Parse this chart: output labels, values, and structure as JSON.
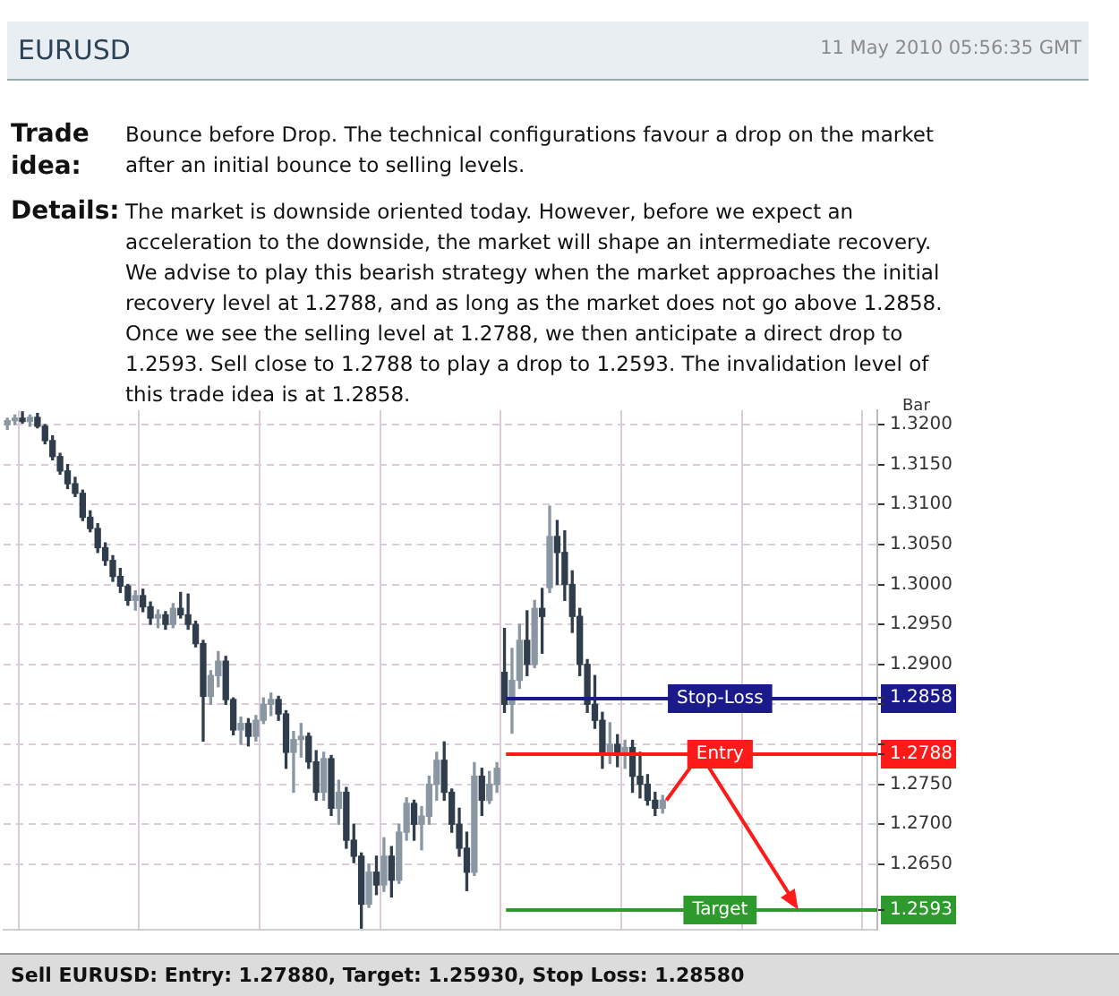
{
  "chart_data": {
    "type": "candlestick",
    "title": "EURUSD",
    "subtitle": "11 May 2010 05:56:35 GMT",
    "annotations": [
      "Trade idea:",
      "Bounce before Drop. The technical configurations favour a drop on the market after an initial bounce to selling levels.",
      "Details:",
      "The market is downside oriented today. However, before we expect an acceleration to the downside, the market will shape an intermediate recovery. We advise to play this bearish strategy when the market approaches the initial recovery level at 1.2788, and as long as the market does not go above 1.2858. Once we see the selling level at 1.2788, we then anticipate a direct drop to 1.2593. Sell close to 1.2788 to play a drop to 1.2593. The invalidation level of this trade idea is at 1.2858.",
      "Bar",
      "Sell EURUSD: Entry: 1.27880, Target: 1.25930, Stop Loss: 1.28580"
    ],
    "categories": [
      null,
      null,
      null,
      null,
      null,
      null,
      null,
      null,
      null,
      null,
      null,
      null,
      null,
      null,
      null,
      null,
      null,
      null,
      null,
      null,
      null,
      null,
      null,
      null,
      null,
      null,
      null,
      null,
      null,
      null,
      null,
      null,
      null,
      null,
      null,
      null,
      null,
      null,
      null,
      null,
      null,
      null,
      null,
      null,
      null,
      null,
      null,
      null,
      null,
      null,
      null,
      null,
      null,
      null,
      null,
      null,
      null,
      null,
      null,
      null,
      null,
      null,
      null,
      null,
      null,
      null,
      null,
      null,
      null,
      null,
      null,
      null,
      null,
      null,
      null,
      null,
      null,
      null,
      null,
      null,
      null,
      null,
      null,
      null,
      null,
      null,
      null,
      null,
      null,
      null,
      null,
      null,
      null,
      null,
      null,
      null,
      null,
      null,
      null,
      null,
      null,
      null,
      null,
      null,
      null,
      null,
      null,
      null,
      null,
      null,
      null,
      null,
      null,
      null,
      null,
      null
    ],
    "ohlc": [
      [
        1.32,
        1.3208,
        1.3194,
        1.3205
      ],
      [
        1.3205,
        1.3212,
        1.32,
        1.3208
      ],
      [
        1.3208,
        1.3216,
        1.3202,
        1.3204
      ],
      [
        1.3204,
        1.3212,
        1.3198,
        1.3209
      ],
      [
        1.3209,
        1.3214,
        1.3196,
        1.3198
      ],
      [
        1.3198,
        1.32,
        1.3176,
        1.318
      ],
      [
        1.318,
        1.3186,
        1.3156,
        1.316
      ],
      [
        1.316,
        1.3164,
        1.3138,
        1.3142
      ],
      [
        1.3142,
        1.315,
        1.312,
        1.3126
      ],
      [
        1.3126,
        1.3134,
        1.311,
        1.3114
      ],
      [
        1.3114,
        1.3118,
        1.308,
        1.3084
      ],
      [
        1.3084,
        1.3092,
        1.3066,
        1.307
      ],
      [
        1.307,
        1.3076,
        1.304,
        1.3046
      ],
      [
        1.3046,
        1.3052,
        1.3024,
        1.303
      ],
      [
        1.303,
        1.3036,
        1.3004,
        1.301
      ],
      [
        1.301,
        1.302,
        1.299,
        1.2998
      ],
      [
        1.2998,
        1.3,
        1.2974,
        1.298
      ],
      [
        1.298,
        1.2992,
        1.2968,
        1.2986
      ],
      [
        1.2986,
        1.2994,
        1.2966,
        1.2972
      ],
      [
        1.2972,
        1.2978,
        1.295,
        1.2958
      ],
      [
        1.2958,
        1.2968,
        1.2946,
        1.2962
      ],
      [
        1.2962,
        1.2966,
        1.2944,
        1.295
      ],
      [
        1.295,
        1.2976,
        1.2946,
        1.297
      ],
      [
        1.297,
        1.299,
        1.2958,
        1.2962
      ],
      [
        1.2962,
        1.2988,
        1.2944,
        1.295
      ],
      [
        1.295,
        1.2954,
        1.2922,
        1.2926
      ],
      [
        1.2926,
        1.293,
        1.2804,
        1.286
      ],
      [
        1.286,
        1.2892,
        1.285,
        1.2886
      ],
      [
        1.2886,
        1.2916,
        1.2872,
        1.2904
      ],
      [
        1.2904,
        1.291,
        1.285,
        1.2856
      ],
      [
        1.2856,
        1.2858,
        1.2812,
        1.2818
      ],
      [
        1.2818,
        1.2834,
        1.28,
        1.2826
      ],
      [
        1.2826,
        1.2832,
        1.2798,
        1.281
      ],
      [
        1.281,
        1.2836,
        1.2804,
        1.283
      ],
      [
        1.283,
        1.2858,
        1.2826,
        1.285
      ],
      [
        1.285,
        1.2864,
        1.2836,
        1.2856
      ],
      [
        1.2856,
        1.286,
        1.283,
        1.2838
      ],
      [
        1.2838,
        1.2842,
        1.277,
        1.279
      ],
      [
        1.279,
        1.2816,
        1.274,
        1.2806
      ],
      [
        1.2806,
        1.2826,
        1.2784,
        1.281
      ],
      [
        1.281,
        1.2814,
        1.277,
        1.2778
      ],
      [
        1.2778,
        1.2792,
        1.273,
        1.274
      ],
      [
        1.274,
        1.279,
        1.273,
        1.2782
      ],
      [
        1.2782,
        1.2786,
        1.2711,
        1.272
      ],
      [
        1.272,
        1.2755,
        1.27,
        1.274
      ],
      [
        1.274,
        1.2746,
        1.267,
        1.268
      ],
      [
        1.268,
        1.27,
        1.2652,
        1.266
      ],
      [
        1.266,
        1.2664,
        1.257,
        1.26
      ],
      [
        1.26,
        1.265,
        1.2596,
        1.264
      ],
      [
        1.264,
        1.266,
        1.2612,
        1.2624
      ],
      [
        1.2624,
        1.2683,
        1.2616,
        1.266
      ],
      [
        1.266,
        1.2672,
        1.2609,
        1.263
      ],
      [
        1.263,
        1.27,
        1.2626,
        1.269
      ],
      [
        1.269,
        1.2733,
        1.268,
        1.2726
      ],
      [
        1.2726,
        1.273,
        1.268,
        1.27
      ],
      [
        1.27,
        1.2722,
        1.2668,
        1.271
      ],
      [
        1.271,
        1.276,
        1.27,
        1.275
      ],
      [
        1.275,
        1.279,
        1.273,
        1.278
      ],
      [
        1.278,
        1.2803,
        1.273,
        1.274
      ],
      [
        1.274,
        1.2744,
        1.269,
        1.27
      ],
      [
        1.27,
        1.272,
        1.266,
        1.267
      ],
      [
        1.267,
        1.269,
        1.2617,
        1.264
      ],
      [
        1.264,
        1.2777,
        1.2636,
        1.276
      ],
      [
        1.276,
        1.277,
        1.2711,
        1.273
      ],
      [
        1.273,
        1.2766,
        1.2726,
        1.275
      ],
      [
        1.275,
        1.2777,
        1.274,
        1.277
      ],
      [
        1.289,
        1.2945,
        1.284,
        1.285
      ],
      [
        1.285,
        1.292,
        1.2814,
        1.288
      ],
      [
        1.288,
        1.295,
        1.287,
        1.293
      ],
      [
        1.293,
        1.2967,
        1.2886,
        1.29
      ],
      [
        1.29,
        1.298,
        1.2896,
        1.297
      ],
      [
        1.297,
        1.2995,
        1.2914,
        1.296
      ],
      [
        1.2996,
        1.3098,
        1.299,
        1.306
      ],
      [
        1.306,
        1.308,
        1.3,
        1.304
      ],
      [
        1.304,
        1.3067,
        1.298,
        1.3
      ],
      [
        1.3,
        1.3017,
        1.294,
        1.296
      ],
      [
        1.296,
        1.297,
        1.2886,
        1.29
      ],
      [
        1.29,
        1.2906,
        1.284,
        1.285
      ],
      [
        1.285,
        1.2886,
        1.282,
        1.283
      ],
      [
        1.283,
        1.284,
        1.277,
        1.279
      ],
      [
        1.279,
        1.2827,
        1.2776,
        1.28
      ],
      [
        1.28,
        1.2812,
        1.2772,
        1.279
      ],
      [
        1.279,
        1.2805,
        1.277,
        1.2796
      ],
      [
        1.2796,
        1.2805,
        1.274,
        1.276
      ],
      [
        1.276,
        1.279,
        1.2733,
        1.275
      ],
      [
        1.275,
        1.2762,
        1.2724,
        1.273
      ],
      [
        1.273,
        1.274,
        1.2711,
        1.272
      ],
      [
        1.272,
        1.2736,
        1.2714,
        1.273
      ],
      null,
      null,
      null,
      null,
      null,
      null,
      null,
      null,
      null,
      null,
      null,
      null,
      null,
      null,
      null,
      null,
      null,
      null,
      null,
      null,
      null,
      null,
      null,
      null,
      null,
      null,
      null,
      null
    ],
    "colors": [
      "#8a97a3",
      "#8a97a3",
      "#2f3d4c",
      "#8a97a3",
      "#2f3d4c",
      "#2f3d4c",
      "#2f3d4c",
      "#2f3d4c",
      "#2f3d4c",
      "#2f3d4c",
      "#2f3d4c",
      "#2f3d4c",
      "#2f3d4c",
      "#2f3d4c",
      "#2f3d4c",
      "#2f3d4c",
      "#2f3d4c",
      "#8a97a3",
      "#2f3d4c",
      "#2f3d4c",
      "#8a97a3",
      "#2f3d4c",
      "#8a97a3",
      "#2f3d4c",
      "#2f3d4c",
      "#2f3d4c",
      "#2f3d4c",
      "#8a97a3",
      "#8a97a3",
      "#2f3d4c",
      "#2f3d4c",
      "#8a97a3",
      "#2f3d4c",
      "#8a97a3",
      "#8a97a3",
      "#8a97a3",
      "#2f3d4c",
      "#2f3d4c",
      "#8a97a3",
      "#8a97a3",
      "#2f3d4c",
      "#2f3d4c",
      "#8a97a3",
      "#2f3d4c",
      "#8a97a3",
      "#2f3d4c",
      "#2f3d4c",
      "#2f3d4c",
      "#8a97a3",
      "#2f3d4c",
      "#8a97a3",
      "#2f3d4c",
      "#8a97a3",
      "#8a97a3",
      "#2f3d4c",
      "#8a97a3",
      "#8a97a3",
      "#8a97a3",
      "#2f3d4c",
      "#2f3d4c",
      "#2f3d4c",
      "#2f3d4c",
      "#8a97a3",
      "#2f3d4c",
      "#8a97a3",
      "#8a97a3",
      "#2f3d4c",
      "#8a97a3",
      "#8a97a3",
      "#2f3d4c",
      "#8a97a3",
      "#2f3d4c",
      "#8a97a3",
      "#2f3d4c",
      "#2f3d4c",
      "#2f3d4c",
      "#2f3d4c",
      "#2f3d4c",
      "#2f3d4c",
      "#2f3d4c",
      "#8a97a3",
      "#2f3d4c",
      "#8a97a3",
      "#2f3d4c",
      "#2f3d4c",
      "#2f3d4c",
      "#2f3d4c",
      "#8a97a3",
      null,
      null,
      null,
      null,
      null,
      null,
      null,
      null,
      null,
      null,
      null,
      null,
      null,
      null,
      null,
      null,
      null,
      null,
      null,
      null,
      null,
      null,
      null,
      null,
      null,
      null,
      null,
      null
    ],
    "ylim": [
      1.2568,
      1.3218
    ],
    "yticks": [
      {
        "value": 1.2593,
        "label": "1.2593"
      },
      {
        "value": 1.265,
        "label": "1.2650"
      },
      {
        "value": 1.27,
        "label": "1.2700"
      },
      {
        "value": 1.275,
        "label": "1.2750"
      },
      {
        "value": 1.2788,
        "label": "1.2788"
      },
      {
        "value": 1.28,
        "label": null
      },
      {
        "value": 1.285,
        "label": null
      },
      {
        "value": 1.2858,
        "label": "1.2858"
      },
      {
        "value": 1.29,
        "label": "1.2900"
      },
      {
        "value": 1.295,
        "label": "1.2950"
      },
      {
        "value": 1.3,
        "label": "1.3000"
      },
      {
        "value": 1.305,
        "label": "1.3050"
      },
      {
        "value": 1.31,
        "label": "1.3100"
      },
      {
        "value": 1.315,
        "label": "1.3150"
      },
      {
        "value": 1.32,
        "label": "1.3200"
      }
    ],
    "tick_labels": "y",
    "grid": true,
    "ref_lines": [
      {
        "axis": "y",
        "value": 1.2858,
        "label": "Stop-Loss",
        "color": "#1a1a8a"
      },
      {
        "axis": "y",
        "value": 1.2788,
        "label": "Entry",
        "color": "#ff1a1a"
      },
      {
        "axis": "y",
        "value": 1.2593,
        "label": "Target",
        "color": "#2e9a2e"
      }
    ]
  }
}
